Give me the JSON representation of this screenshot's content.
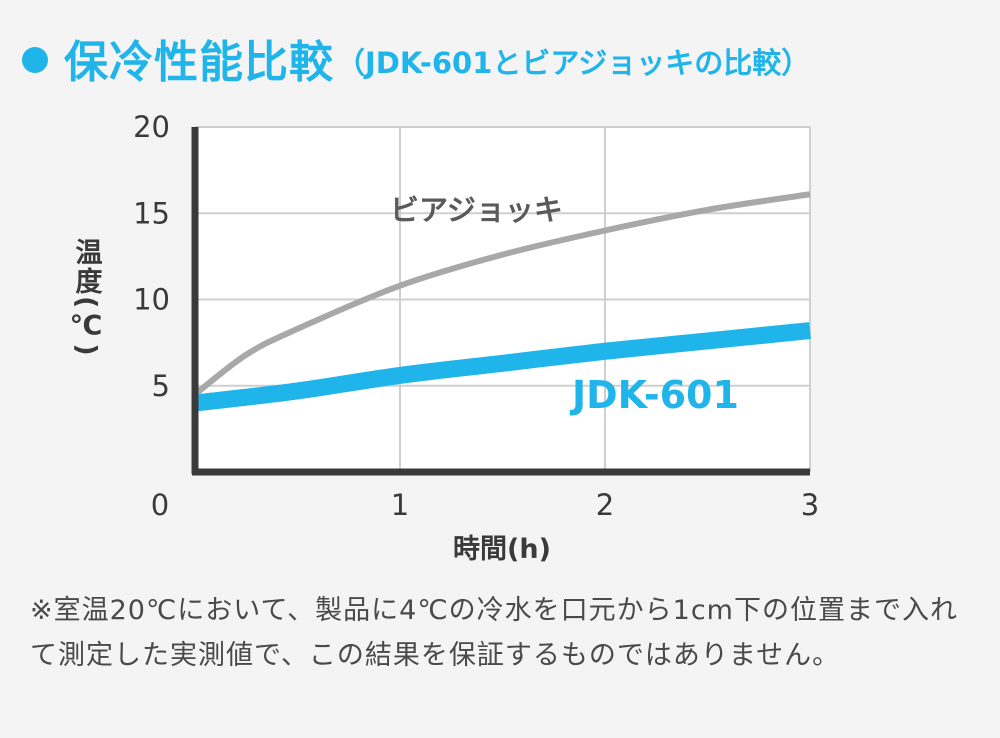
{
  "title": {
    "main": "保冷性能比較",
    "sub": "（JDK-601とビアジョッキの比較）"
  },
  "colors": {
    "accent": "#1fb5ea",
    "beer": "#a8a8a8",
    "axis": "#3a3a3a",
    "grid": "#cfcfcf",
    "text": "#4a4a4a"
  },
  "chart_data": {
    "type": "line",
    "xlabel": "時間(h)",
    "ylabel": "温度(℃)",
    "xlim": [
      0,
      3
    ],
    "ylim": [
      0,
      20
    ],
    "xticks": [
      0,
      1,
      2,
      3
    ],
    "xtick_labels": [
      "0",
      "1",
      "2",
      "3"
    ],
    "yticks": [
      5,
      10,
      15,
      20
    ],
    "ytick_labels": [
      "5",
      "10",
      "15",
      "20"
    ],
    "grid": true,
    "series": [
      {
        "name": "ビアジョッキ",
        "color": "#a8a8a8",
        "x": [
          0,
          0.25,
          0.5,
          1,
          1.5,
          2,
          2.5,
          3
        ],
        "y": [
          4.5,
          6.8,
          8.3,
          10.8,
          12.6,
          14.0,
          15.2,
          16.1
        ]
      },
      {
        "name": "JDK-601",
        "color": "#1fb5ea",
        "x": [
          0,
          0.5,
          1,
          1.5,
          2,
          2.5,
          3
        ],
        "y": [
          4.0,
          4.7,
          5.6,
          6.3,
          7.0,
          7.6,
          8.2
        ]
      }
    ]
  },
  "note": "※室温20℃において、製品に4℃の冷水を口元から1cm下の位置まで入れて測定した実測値で、この結果を保証するものではありません。"
}
